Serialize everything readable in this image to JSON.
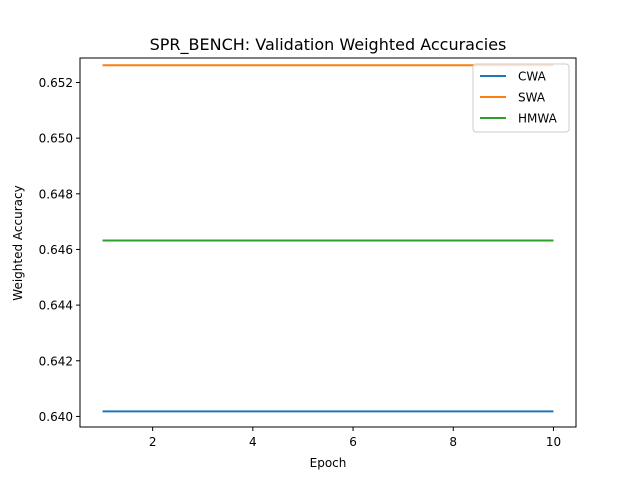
{
  "chart_data": {
    "type": "line",
    "title": "SPR_BENCH: Validation Weighted Accuracies",
    "xlabel": "Epoch",
    "ylabel": "Weighted Accuracy",
    "xlim": [
      0.55,
      10.45
    ],
    "ylim": [
      0.63962,
      0.65288
    ],
    "xticks": [
      2,
      4,
      6,
      8,
      10
    ],
    "xtick_labels": [
      "2",
      "4",
      "6",
      "8",
      "10"
    ],
    "yticks": [
      0.64,
      0.642,
      0.644,
      0.646,
      0.648,
      0.65,
      0.652
    ],
    "ytick_labels": [
      "0.640",
      "0.642",
      "0.644",
      "0.646",
      "0.648",
      "0.650",
      "0.652"
    ],
    "grid": false,
    "legend_position": "top-right",
    "x": [
      1,
      2,
      3,
      4,
      5,
      6,
      7,
      8,
      9,
      10
    ],
    "series": [
      {
        "name": "CWA",
        "color": "#1f77b4",
        "values": [
          0.64018,
          0.64018,
          0.64018,
          0.64018,
          0.64018,
          0.64018,
          0.64018,
          0.64018,
          0.64018,
          0.64018
        ]
      },
      {
        "name": "SWA",
        "color": "#ff7f0e",
        "values": [
          0.65262,
          0.65262,
          0.65262,
          0.65262,
          0.65262,
          0.65262,
          0.65262,
          0.65262,
          0.65262,
          0.65262
        ]
      },
      {
        "name": "HMWA",
        "color": "#2ca02c",
        "values": [
          0.64632,
          0.64632,
          0.64632,
          0.64632,
          0.64632,
          0.64632,
          0.64632,
          0.64632,
          0.64632,
          0.64632
        ]
      }
    ]
  }
}
